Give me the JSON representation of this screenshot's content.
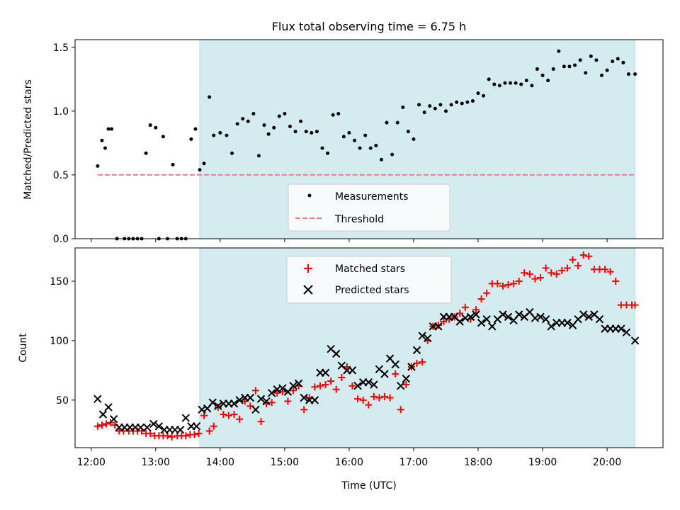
{
  "title": "Flux total observing time = 6.75 h",
  "colors": {
    "observing_span": "#d4ebf0",
    "matched": "#ff0000",
    "predicted": "#000000",
    "measurement": "#000000",
    "threshold": "#f08080"
  },
  "observing_span": {
    "start": "13:41",
    "end": "20:26"
  },
  "chart_data": [
    {
      "type": "scatter",
      "ylabel": "Matched/Predicted stars",
      "xlim": [
        "11:45",
        "20:52"
      ],
      "ylim": [
        0,
        1.56
      ],
      "yticks": [
        0.0,
        0.5,
        1.0,
        1.5
      ],
      "ytick_labels": [
        "0.0",
        "0.5",
        "1.0",
        "1.5"
      ],
      "grid": false,
      "legend_position": "bottom-center",
      "series": [
        {
          "name": "Measurements",
          "marker": "dot",
          "x": [
            "12:06",
            "12:10",
            "12:13",
            "12:16",
            "12:19",
            "12:24",
            "12:31",
            "12:35",
            "12:39",
            "12:43",
            "12:47",
            "12:51",
            "12:55",
            "13:00",
            "13:03",
            "13:07",
            "13:11",
            "13:16",
            "13:20",
            "13:24",
            "13:28",
            "13:33",
            "13:37",
            "13:41",
            "13:45",
            "13:50",
            "13:54",
            "14:00",
            "14:06",
            "14:11",
            "14:16",
            "14:21",
            "14:26",
            "14:31",
            "14:36",
            "14:41",
            "14:45",
            "14:50",
            "14:55",
            "15:00",
            "15:05",
            "15:10",
            "15:15",
            "15:20",
            "15:25",
            "15:30",
            "15:35",
            "15:40",
            "15:45",
            "15:50",
            "15:55",
            "16:00",
            "16:05",
            "16:10",
            "16:15",
            "16:20",
            "16:25",
            "16:30",
            "16:35",
            "16:40",
            "16:45",
            "16:50",
            "16:55",
            "17:00",
            "17:05",
            "17:10",
            "17:15",
            "17:20",
            "17:25",
            "17:30",
            "17:35",
            "17:40",
            "17:45",
            "17:50",
            "17:55",
            "18:00",
            "18:05",
            "18:10",
            "18:15",
            "18:20",
            "18:25",
            "18:30",
            "18:35",
            "18:40",
            "18:45",
            "18:50",
            "18:55",
            "19:00",
            "19:05",
            "19:10",
            "19:15",
            "19:20",
            "19:25",
            "19:30",
            "19:35",
            "19:40",
            "19:45",
            "19:50",
            "19:55",
            "20:00",
            "20:05",
            "20:10",
            "20:15",
            "20:20",
            "20:26"
          ],
          "y": [
            0.57,
            0.77,
            0.71,
            0.86,
            0.86,
            0.0,
            0.0,
            0.0,
            0.0,
            0.0,
            0.0,
            0.67,
            0.89,
            0.87,
            0.0,
            0.8,
            0.0,
            0.58,
            0.0,
            0.0,
            0.0,
            0.78,
            0.86,
            0.54,
            0.59,
            1.11,
            0.81,
            0.83,
            0.81,
            0.67,
            0.9,
            0.94,
            0.92,
            0.98,
            0.65,
            0.89,
            0.82,
            0.87,
            0.96,
            0.98,
            0.88,
            0.84,
            0.92,
            0.84,
            0.83,
            0.84,
            0.71,
            0.67,
            0.97,
            0.98,
            0.8,
            0.83,
            0.77,
            0.71,
            0.81,
            0.71,
            0.73,
            0.62,
            0.91,
            0.66,
            0.91,
            1.03,
            0.84,
            0.78,
            1.05,
            0.99,
            1.04,
            1.02,
            1.05,
            1.0,
            1.05,
            1.07,
            1.06,
            1.07,
            1.08,
            1.14,
            1.12,
            1.25,
            1.21,
            1.2,
            1.22,
            1.22,
            1.22,
            1.21,
            1.24,
            1.2,
            1.33,
            1.28,
            1.24,
            1.33,
            1.47,
            1.35,
            1.35,
            1.36,
            1.4,
            1.3,
            1.43,
            1.4,
            1.28,
            1.32,
            1.39,
            1.41,
            1.38,
            1.29,
            1.29
          ]
        },
        {
          "name": "Threshold",
          "style": "dashed",
          "x": [
            "12:06",
            "20:26"
          ],
          "y": [
            0.5,
            0.5
          ]
        }
      ]
    },
    {
      "type": "scatter",
      "xlabel": "Time (UTC)",
      "ylabel": "Count",
      "xlim": [
        "11:45",
        "20:52"
      ],
      "ylim": [
        10,
        178
      ],
      "yticks": [
        50,
        100,
        150
      ],
      "ytick_labels": [
        "50",
        "100",
        "150"
      ],
      "xticks": [
        "12:00",
        "13:00",
        "14:00",
        "15:00",
        "16:00",
        "17:00",
        "18:00",
        "19:00",
        "20:00"
      ],
      "grid": false,
      "legend_position": "top-center",
      "series": [
        {
          "name": "Matched stars",
          "marker": "plus",
          "x": [
            "12:06",
            "12:10",
            "12:14",
            "12:18",
            "12:22",
            "12:26",
            "12:30",
            "12:35",
            "12:39",
            "12:43",
            "12:47",
            "12:51",
            "12:55",
            "12:59",
            "13:03",
            "13:07",
            "13:11",
            "13:15",
            "13:20",
            "13:24",
            "13:28",
            "13:32",
            "13:36",
            "13:40",
            "13:45",
            "13:50",
            "13:54",
            "13:58",
            "14:03",
            "14:08",
            "14:13",
            "14:18",
            "14:23",
            "14:28",
            "14:33",
            "14:38",
            "14:43",
            "14:48",
            "14:53",
            "14:58",
            "15:03",
            "15:08",
            "15:13",
            "15:18",
            "15:23",
            "15:28",
            "15:33",
            "15:38",
            "15:43",
            "15:48",
            "15:53",
            "15:58",
            "16:03",
            "16:08",
            "16:13",
            "16:18",
            "16:23",
            "16:28",
            "16:33",
            "16:38",
            "16:43",
            "16:48",
            "16:53",
            "16:58",
            "17:03",
            "17:08",
            "17:13",
            "17:18",
            "17:23",
            "17:28",
            "17:33",
            "17:38",
            "17:43",
            "17:48",
            "17:53",
            "17:58",
            "18:03",
            "18:08",
            "18:13",
            "18:18",
            "18:23",
            "18:28",
            "18:33",
            "18:38",
            "18:43",
            "18:48",
            "18:53",
            "18:58",
            "19:03",
            "19:08",
            "19:13",
            "19:18",
            "19:23",
            "19:28",
            "19:33",
            "19:38",
            "19:43",
            "19:48",
            "19:53",
            "19:58",
            "20:03",
            "20:08",
            "20:13",
            "20:18",
            "20:23",
            "20:26"
          ],
          "y": [
            28,
            29,
            30,
            31,
            29,
            24,
            24,
            24,
            24,
            24,
            24,
            22,
            22,
            20,
            20,
            20,
            20,
            19,
            20,
            20,
            20,
            21,
            21,
            22,
            37,
            24,
            28,
            44,
            38,
            37,
            38,
            34,
            49,
            45,
            58,
            32,
            47,
            48,
            56,
            57,
            49,
            58,
            62,
            42,
            52,
            61,
            62,
            63,
            66,
            59,
            69,
            78,
            62,
            51,
            50,
            46,
            53,
            52,
            53,
            52,
            72,
            42,
            63,
            78,
            81,
            82,
            100,
            112,
            113,
            116,
            118,
            120,
            123,
            128,
            118,
            126,
            135,
            140,
            148,
            148,
            146,
            147,
            148,
            150,
            157,
            156,
            152,
            153,
            161,
            157,
            156,
            159,
            161,
            168,
            163,
            172,
            171,
            160,
            160,
            160,
            158,
            150,
            130,
            130,
            130,
            130
          ]
        },
        {
          "name": "Predicted stars",
          "marker": "x",
          "x": [
            "12:06",
            "12:11",
            "12:16",
            "12:21",
            "12:26",
            "12:31",
            "12:36",
            "12:41",
            "12:46",
            "12:52",
            "12:58",
            "13:03",
            "13:08",
            "13:13",
            "13:18",
            "13:23",
            "13:28",
            "13:33",
            "13:38",
            "13:43",
            "13:48",
            "13:53",
            "13:58",
            "14:03",
            "14:08",
            "14:13",
            "14:18",
            "14:23",
            "14:28",
            "14:33",
            "14:38",
            "14:43",
            "14:48",
            "14:53",
            "14:58",
            "15:03",
            "15:08",
            "15:13",
            "15:18",
            "15:23",
            "15:28",
            "15:33",
            "15:38",
            "15:43",
            "15:48",
            "15:53",
            "15:58",
            "16:03",
            "16:08",
            "16:13",
            "16:18",
            "16:23",
            "16:28",
            "16:33",
            "16:38",
            "16:43",
            "16:48",
            "16:53",
            "16:58",
            "17:03",
            "17:08",
            "17:13",
            "17:18",
            "17:23",
            "17:28",
            "17:33",
            "17:38",
            "17:43",
            "17:48",
            "17:53",
            "17:58",
            "18:03",
            "18:08",
            "18:13",
            "18:18",
            "18:23",
            "18:28",
            "18:33",
            "18:38",
            "18:43",
            "18:48",
            "18:53",
            "18:58",
            "19:03",
            "19:08",
            "19:13",
            "19:18",
            "19:23",
            "19:28",
            "19:33",
            "19:38",
            "19:43",
            "19:48",
            "19:53",
            "19:58",
            "20:03",
            "20:08",
            "20:13",
            "20:18",
            "20:26"
          ],
          "y": [
            51,
            38,
            44,
            34,
            27,
            27,
            27,
            27,
            27,
            27,
            30,
            28,
            25,
            25,
            25,
            25,
            35,
            28,
            28,
            42,
            43,
            48,
            45,
            47,
            47,
            47,
            50,
            52,
            52,
            42,
            51,
            49,
            56,
            59,
            60,
            57,
            62,
            64,
            52,
            50,
            50,
            73,
            73,
            93,
            89,
            79,
            75,
            75,
            62,
            65,
            65,
            63,
            76,
            72,
            85,
            80,
            62,
            68,
            78,
            92,
            104,
            102,
            112,
            112,
            120,
            120,
            120,
            116,
            119,
            120,
            122,
            115,
            118,
            112,
            118,
            122,
            120,
            117,
            122,
            120,
            124,
            119,
            120,
            118,
            112,
            115,
            115,
            115,
            113,
            118,
            122,
            120,
            122,
            118,
            110,
            110,
            110,
            110,
            107,
            100
          ]
        }
      ]
    }
  ]
}
